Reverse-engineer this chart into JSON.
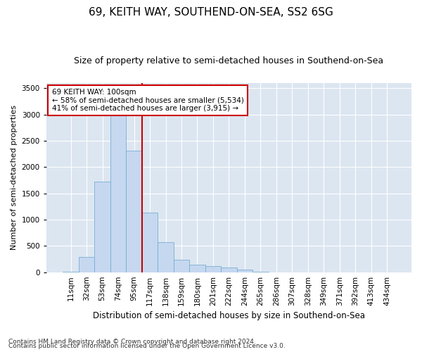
{
  "title": "69, KEITH WAY, SOUTHEND-ON-SEA, SS2 6SG",
  "subtitle": "Size of property relative to semi-detached houses in Southend-on-Sea",
  "xlabel": "Distribution of semi-detached houses by size in Southend-on-Sea",
  "ylabel": "Number of semi-detached properties",
  "footnote1": "Contains HM Land Registry data © Crown copyright and database right 2024.",
  "footnote2": "Contains public sector information licensed under the Open Government Licence v3.0.",
  "annotation_line1": "69 KEITH WAY: 100sqm",
  "annotation_line2": "← 58% of semi-detached houses are smaller (5,534)",
  "annotation_line3": "41% of semi-detached houses are larger (3,915) →",
  "bar_color": "#c5d8f0",
  "bar_edge_color": "#7aadd4",
  "vline_color": "#cc0000",
  "annotation_box_color": "#ffffff",
  "annotation_box_edge": "#cc0000",
  "plot_background": "#dce6f1",
  "ylim": [
    0,
    3600
  ],
  "yticks": [
    0,
    500,
    1000,
    1500,
    2000,
    2500,
    3000,
    3500
  ],
  "categories": [
    "11sqm",
    "32sqm",
    "53sqm",
    "74sqm",
    "95sqm",
    "117sqm",
    "138sqm",
    "159sqm",
    "180sqm",
    "201sqm",
    "222sqm",
    "244sqm",
    "265sqm",
    "286sqm",
    "307sqm",
    "328sqm",
    "349sqm",
    "371sqm",
    "392sqm",
    "413sqm",
    "434sqm"
  ],
  "values": [
    10,
    290,
    1720,
    3020,
    2310,
    1130,
    570,
    240,
    140,
    110,
    90,
    50,
    10,
    0,
    0,
    0,
    0,
    0,
    0,
    0,
    0
  ],
  "vline_x": 4.5,
  "title_fontsize": 11,
  "subtitle_fontsize": 9,
  "ylabel_fontsize": 8,
  "xlabel_fontsize": 8.5,
  "tick_fontsize": 7.5,
  "annotation_fontsize": 7.5,
  "footnote_fontsize": 6.5
}
